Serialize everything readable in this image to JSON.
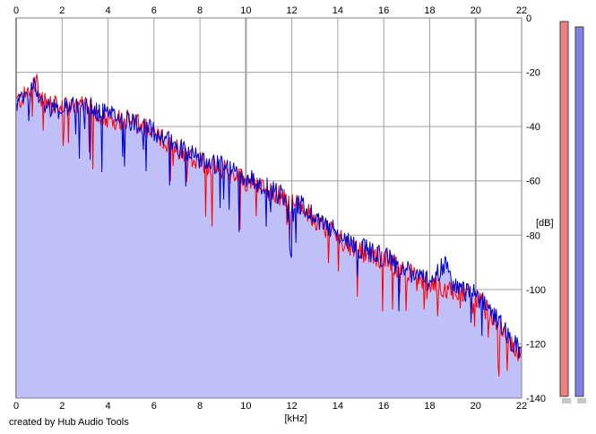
{
  "chart_data": {
    "type": "line",
    "title": "",
    "xlabel": "[kHz]",
    "ylabel": "[dB]",
    "xlim": [
      0,
      22
    ],
    "ylim": [
      -140,
      0
    ],
    "x_ticks": [
      "0",
      "2",
      "4",
      "6",
      "8",
      "10",
      "12",
      "14",
      "16",
      "18",
      "20",
      "22"
    ],
    "y_ticks": [
      "0",
      "-20",
      "-40",
      "-60",
      "-80",
      "-100",
      "-120",
      "-140"
    ],
    "grid": true,
    "legend": "none",
    "series": [
      {
        "color": "#ff0000",
        "envelope": [
          [
            0,
            -30
          ],
          [
            0.4,
            -28
          ],
          [
            0.8,
            -22
          ],
          [
            1.2,
            -30
          ],
          [
            2.0,
            -33
          ],
          [
            2.6,
            -31
          ],
          [
            3.2,
            -33
          ],
          [
            4.0,
            -36
          ],
          [
            5.0,
            -37
          ],
          [
            6.0,
            -42
          ],
          [
            7.0,
            -47
          ],
          [
            8.0,
            -52
          ],
          [
            9.0,
            -55
          ],
          [
            10.0,
            -59
          ],
          [
            11.0,
            -63
          ],
          [
            12.0,
            -67
          ],
          [
            13.0,
            -73
          ],
          [
            14.0,
            -80
          ],
          [
            15.0,
            -85
          ],
          [
            16.0,
            -88
          ],
          [
            17.0,
            -93
          ],
          [
            18.0,
            -97
          ],
          [
            19.0,
            -99
          ],
          [
            20.0,
            -102
          ],
          [
            21.0,
            -112
          ],
          [
            22.0,
            -124
          ]
        ]
      },
      {
        "color": "#0000cc",
        "envelope": [
          [
            0,
            -31
          ],
          [
            0.4,
            -29
          ],
          [
            0.8,
            -24
          ],
          [
            1.2,
            -31
          ],
          [
            2.0,
            -33
          ],
          [
            2.6,
            -30
          ],
          [
            3.2,
            -32
          ],
          [
            4.0,
            -35
          ],
          [
            5.0,
            -37
          ],
          [
            6.0,
            -41
          ],
          [
            7.0,
            -46
          ],
          [
            8.0,
            -51
          ],
          [
            9.0,
            -54
          ],
          [
            10.0,
            -58
          ],
          [
            11.0,
            -62
          ],
          [
            12.0,
            -66
          ],
          [
            13.0,
            -72
          ],
          [
            14.0,
            -79
          ],
          [
            15.0,
            -84
          ],
          [
            16.0,
            -87
          ],
          [
            17.0,
            -92
          ],
          [
            18.0,
            -96
          ],
          [
            18.7,
            -90
          ],
          [
            19.0,
            -98
          ],
          [
            20.0,
            -101
          ],
          [
            21.0,
            -111
          ],
          [
            22.0,
            -123
          ]
        ]
      }
    ],
    "fill_color": "#c0c0f8",
    "level_meters": [
      {
        "channel": "left",
        "color": "#f08080"
      },
      {
        "channel": "right",
        "color": "#8080e8"
      }
    ]
  },
  "footer": {
    "credit": "created by Hub Audio Tools"
  }
}
